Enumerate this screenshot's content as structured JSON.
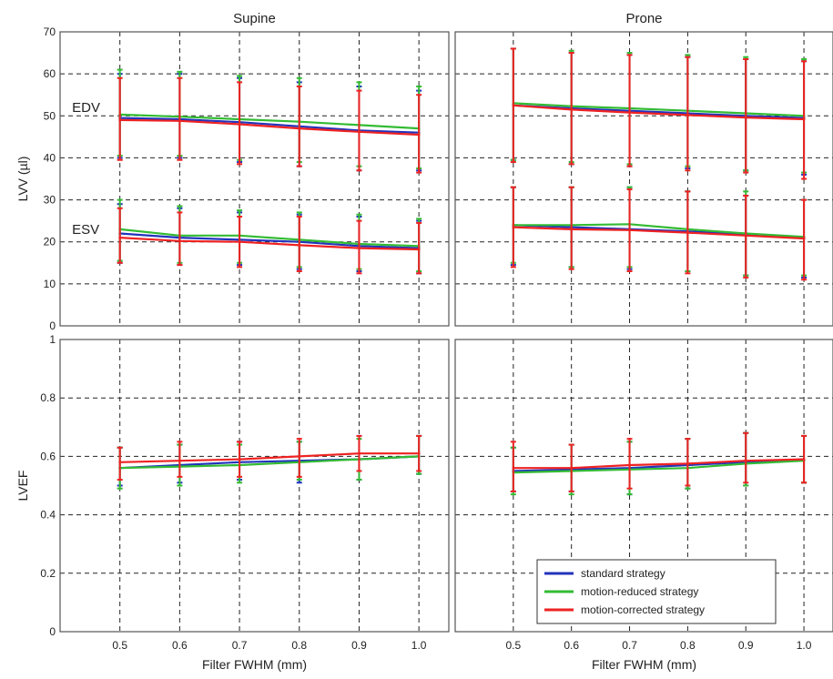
{
  "colors": {
    "standard": "#2233bb",
    "reduced": "#33bb33",
    "corrected": "#ee2222"
  },
  "chart_data": {
    "type": "line",
    "x_label": "Filter FWHM (mm)",
    "x_ticks": [
      "0.5",
      "0.6",
      "0.7",
      "0.8",
      "0.9",
      "1.0"
    ],
    "x": [
      0.5,
      0.6,
      0.7,
      0.8,
      0.9,
      1.0
    ],
    "xlim": [
      0.4,
      1.05
    ],
    "legend": {
      "placement": "bottom-right of lower-right panel",
      "entries": [
        "standard strategy",
        "motion-reduced strategy",
        "motion-corrected strategy"
      ]
    },
    "grid": true,
    "panels": [
      {
        "id": "supine-lvv",
        "column_title": "Supine",
        "ylabel": "LVV (µl)",
        "ylim": [
          0,
          70
        ],
        "yticks": [
          "0",
          "10",
          "20",
          "30",
          "40",
          "50",
          "60",
          "70"
        ],
        "annotations": [
          {
            "text": "EDV",
            "x": 0.42,
            "y": 52
          },
          {
            "text": "ESV",
            "x": 0.42,
            "y": 23
          }
        ],
        "groups": [
          {
            "name": "EDV",
            "series": [
              {
                "strategy": "standard strategy",
                "values": [
                  49.5,
                  49.2,
                  48.5,
                  47.5,
                  46.5,
                  46
                ],
                "lower": [
                  40,
                  40,
                  39,
                  38,
                  37,
                  37
                ],
                "upper": [
                  60,
                  60,
                  59,
                  58,
                  57,
                  56
                ]
              },
              {
                "strategy": "motion-reduced strategy",
                "values": [
                  50.3,
                  49.8,
                  49.2,
                  48.6,
                  47.8,
                  47
                ],
                "lower": [
                  40.5,
                  40.5,
                  39.5,
                  39,
                  38,
                  37.5
                ],
                "upper": [
                  61,
                  60.5,
                  59.5,
                  59,
                  58,
                  57
                ]
              },
              {
                "strategy": "motion-corrected strategy",
                "values": [
                  49,
                  48.8,
                  48,
                  47,
                  46.2,
                  45.5
                ],
                "lower": [
                  39.5,
                  39.5,
                  38.5,
                  38,
                  37,
                  36.5
                ],
                "upper": [
                  59,
                  59,
                  58,
                  57,
                  56,
                  55
                ]
              }
            ]
          },
          {
            "name": "ESV",
            "series": [
              {
                "strategy": "standard strategy",
                "values": [
                  22,
                  21,
                  20.5,
                  20,
                  19,
                  18.5
                ],
                "lower": [
                  15,
                  14.5,
                  14.5,
                  13.5,
                  13,
                  12.5
                ],
                "upper": [
                  29,
                  28,
                  27,
                  26.5,
                  26,
                  25
                ]
              },
              {
                "strategy": "motion-reduced strategy",
                "values": [
                  23,
                  21.5,
                  21.5,
                  20.5,
                  19.5,
                  19
                ],
                "lower": [
                  15.5,
                  15,
                  15,
                  14,
                  13.5,
                  13
                ],
                "upper": [
                  30,
                  28.5,
                  27.5,
                  27,
                  26.5,
                  25.5
                ]
              },
              {
                "strategy": "motion-corrected strategy",
                "values": [
                  21,
                  20.2,
                  20,
                  19.2,
                  18.5,
                  18.2
                ],
                "lower": [
                  15,
                  14.5,
                  14,
                  13,
                  12.5,
                  12.5
                ],
                "upper": [
                  28,
                  27,
                  26,
                  26,
                  25,
                  24.5
                ]
              }
            ]
          }
        ]
      },
      {
        "id": "prone-lvv",
        "column_title": "Prone",
        "ylabel": "",
        "ylim": [
          0,
          70
        ],
        "yticks": [],
        "annotations": [],
        "groups": [
          {
            "name": "EDV",
            "series": [
              {
                "strategy": "standard strategy",
                "values": [
                  52.5,
                  51.8,
                  51.2,
                  50.6,
                  50,
                  49.5
                ],
                "lower": [
                  39.5,
                  38.5,
                  38,
                  37.5,
                  37,
                  36
                ],
                "upper": [
                  66,
                  65,
                  64.5,
                  64,
                  63.5,
                  63
                ]
              },
              {
                "strategy": "motion-reduced strategy",
                "values": [
                  53,
                  52.3,
                  51.8,
                  51.2,
                  50.6,
                  50
                ],
                "lower": [
                  39.5,
                  39,
                  38.5,
                  38,
                  37,
                  36.5
                ],
                "upper": [
                  66,
                  65.5,
                  65,
                  64.5,
                  64,
                  63.5
                ]
              },
              {
                "strategy": "motion-corrected strategy",
                "values": [
                  52.5,
                  51.5,
                  50.8,
                  50.2,
                  49.6,
                  49.2
                ],
                "lower": [
                  39,
                  38.5,
                  38,
                  37,
                  36.5,
                  35
                ],
                "upper": [
                  66,
                  65,
                  64.5,
                  64,
                  63.5,
                  63
                ]
              }
            ]
          },
          {
            "name": "ESV",
            "series": [
              {
                "strategy": "standard strategy",
                "values": [
                  24,
                  23.5,
                  23,
                  22.5,
                  21.8,
                  21
                ],
                "lower": [
                  14.5,
                  14,
                  13.5,
                  13,
                  12,
                  11.5
                ],
                "upper": [
                  33,
                  33,
                  33,
                  32,
                  31,
                  30
                ]
              },
              {
                "strategy": "motion-reduced strategy",
                "values": [
                  24,
                  24,
                  24.2,
                  23,
                  22,
                  21.2
                ],
                "lower": [
                  15,
                  14,
                  14,
                  13,
                  12,
                  12
                ],
                "upper": [
                  33,
                  33,
                  33,
                  32,
                  32,
                  30
                ]
              },
              {
                "strategy": "motion-corrected strategy",
                "values": [
                  23.5,
                  23,
                  22.8,
                  22.2,
                  21.5,
                  20.8
                ],
                "lower": [
                  14,
                  13.5,
                  13,
                  12.5,
                  11.5,
                  11
                ],
                "upper": [
                  33,
                  33,
                  32.5,
                  32,
                  31,
                  30
                ]
              }
            ]
          }
        ]
      },
      {
        "id": "supine-lvef",
        "column_title": "",
        "ylabel": "LVEF",
        "ylim": [
          0,
          1
        ],
        "yticks": [
          "0",
          "0.2",
          "0.4",
          "0.6",
          "0.8",
          "1"
        ],
        "annotations": [],
        "groups": [
          {
            "name": "LVEF",
            "series": [
              {
                "strategy": "standard strategy",
                "values": [
                  0.56,
                  0.57,
                  0.58,
                  0.585,
                  0.59,
                  0.6
                ],
                "lower": [
                  0.5,
                  0.51,
                  0.52,
                  0.51,
                  0.52,
                  0.54
                ],
                "upper": [
                  0.63,
                  0.64,
                  0.65,
                  0.65,
                  0.67,
                  0.67
                ]
              },
              {
                "strategy": "motion-reduced strategy",
                "values": [
                  0.56,
                  0.565,
                  0.57,
                  0.58,
                  0.59,
                  0.6
                ],
                "lower": [
                  0.49,
                  0.5,
                  0.51,
                  0.52,
                  0.52,
                  0.54
                ],
                "upper": [
                  0.63,
                  0.64,
                  0.64,
                  0.65,
                  0.66,
                  0.67
                ]
              },
              {
                "strategy": "motion-corrected strategy",
                "values": [
                  0.58,
                  0.585,
                  0.59,
                  0.6,
                  0.61,
                  0.61
                ],
                "lower": [
                  0.52,
                  0.53,
                  0.53,
                  0.53,
                  0.55,
                  0.55
                ],
                "upper": [
                  0.63,
                  0.65,
                  0.65,
                  0.66,
                  0.67,
                  0.67
                ]
              }
            ]
          }
        ]
      },
      {
        "id": "prone-lvef",
        "column_title": "",
        "ylabel": "",
        "ylim": [
          0,
          1
        ],
        "yticks": [],
        "annotations": [],
        "groups": [
          {
            "name": "LVEF",
            "series": [
              {
                "strategy": "standard strategy",
                "values": [
                  0.55,
                  0.555,
                  0.56,
                  0.57,
                  0.58,
                  0.59
                ],
                "lower": [
                  0.48,
                  0.48,
                  0.47,
                  0.49,
                  0.5,
                  0.51
                ],
                "upper": [
                  0.63,
                  0.64,
                  0.65,
                  0.66,
                  0.68,
                  0.67
                ]
              },
              {
                "strategy": "motion-reduced strategy",
                "values": [
                  0.545,
                  0.55,
                  0.555,
                  0.56,
                  0.575,
                  0.585
                ],
                "lower": [
                  0.47,
                  0.47,
                  0.47,
                  0.49,
                  0.5,
                  0.51
                ],
                "upper": [
                  0.63,
                  0.64,
                  0.65,
                  0.66,
                  0.68,
                  0.67
                ]
              },
              {
                "strategy": "motion-corrected strategy",
                "values": [
                  0.56,
                  0.56,
                  0.57,
                  0.575,
                  0.585,
                  0.59
                ],
                "lower": [
                  0.48,
                  0.48,
                  0.49,
                  0.5,
                  0.51,
                  0.51
                ],
                "upper": [
                  0.65,
                  0.64,
                  0.66,
                  0.66,
                  0.68,
                  0.67
                ]
              }
            ]
          }
        ]
      }
    ]
  }
}
